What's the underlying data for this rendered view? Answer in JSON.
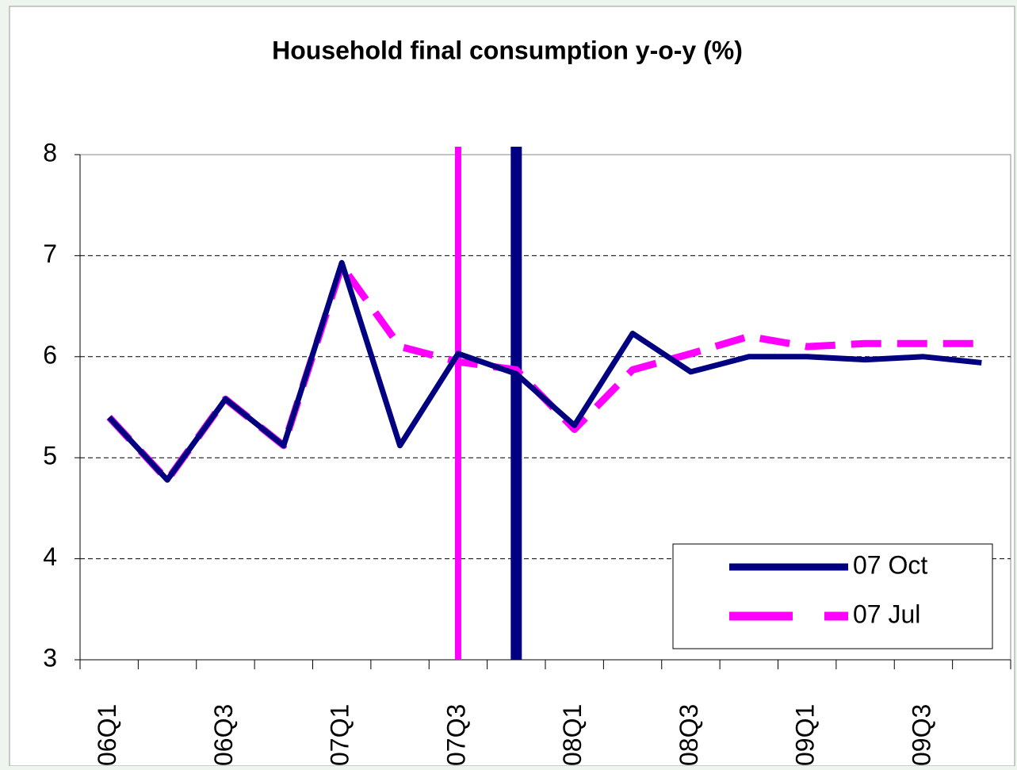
{
  "chart_data": {
    "type": "line",
    "title": "Household final consumption y-o-y (%)",
    "categories": [
      "06Q1",
      null,
      "06Q3",
      null,
      "07Q1",
      null,
      "07Q3",
      null,
      "08Q1",
      null,
      "08Q3",
      null,
      "09Q1",
      null,
      "09Q3",
      null
    ],
    "series": [
      {
        "name": "07 Oct",
        "color": "#000080",
        "values": [
          5.4,
          4.78,
          5.58,
          5.12,
          6.93,
          5.12,
          6.03,
          5.83,
          5.32,
          6.23,
          5.85,
          6.0,
          6.0,
          5.97,
          6.0,
          5.94
        ]
      },
      {
        "name": "07 Jul",
        "color": "#ff00ff",
        "values": [
          5.4,
          4.78,
          5.58,
          5.12,
          6.9,
          6.1,
          5.95,
          5.87,
          5.28,
          5.87,
          6.03,
          6.2,
          6.1,
          6.13,
          6.13,
          6.13
        ]
      }
    ],
    "ylim": [
      3,
      8
    ],
    "yticks": [
      3,
      4,
      5,
      6,
      7,
      8
    ],
    "grid": true,
    "legend": "lower-right"
  }
}
